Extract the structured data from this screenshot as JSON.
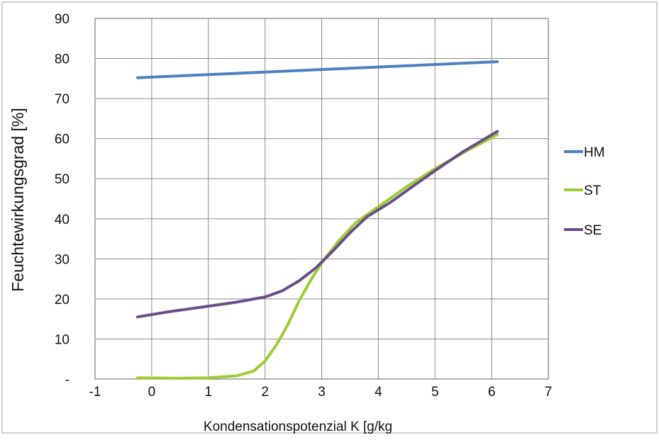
{
  "chart_data": {
    "type": "line",
    "title": "",
    "xlabel": "Kondensationspotenzial K [g/kg",
    "ylabel": "Feuchtewirkungsgrad [%]",
    "xlim": [
      -1,
      7
    ],
    "ylim": [
      0,
      90
    ],
    "grid": true,
    "legend_position": "right",
    "x_tick_labels": [
      "-1",
      "0",
      "1",
      "2",
      "3",
      "4",
      "5",
      "6",
      "7"
    ],
    "y_tick_labels": [
      "-",
      "10",
      "20",
      "30",
      "40",
      "50",
      "60",
      "70",
      "80",
      "90"
    ],
    "series": [
      {
        "name": "HM",
        "color": "#4f7fc0",
        "points": [
          [
            -0.25,
            75.2
          ],
          [
            6.1,
            79.2
          ]
        ]
      },
      {
        "name": "ST",
        "color": "#9acd32",
        "points": [
          [
            -0.25,
            0.3
          ],
          [
            0.5,
            0.2
          ],
          [
            1.0,
            0.3
          ],
          [
            1.5,
            0.8
          ],
          [
            1.8,
            2.0
          ],
          [
            2.0,
            4.5
          ],
          [
            2.2,
            8.5
          ],
          [
            2.4,
            13.5
          ],
          [
            2.6,
            19.5
          ],
          [
            2.8,
            24.5
          ],
          [
            3.0,
            29.0
          ],
          [
            3.3,
            34.5
          ],
          [
            3.6,
            39.0
          ],
          [
            4.0,
            43.0
          ],
          [
            4.5,
            48.0
          ],
          [
            5.0,
            52.5
          ],
          [
            5.5,
            56.5
          ],
          [
            6.1,
            61.0
          ]
        ]
      },
      {
        "name": "SE",
        "color": "#6a4c8c",
        "points": [
          [
            -0.25,
            15.5
          ],
          [
            0.3,
            16.8
          ],
          [
            1.0,
            18.2
          ],
          [
            1.5,
            19.2
          ],
          [
            2.0,
            20.5
          ],
          [
            2.3,
            22.0
          ],
          [
            2.6,
            24.5
          ],
          [
            2.9,
            27.8
          ],
          [
            3.2,
            32.0
          ],
          [
            3.5,
            36.5
          ],
          [
            3.8,
            40.5
          ],
          [
            4.2,
            44.0
          ],
          [
            4.6,
            48.0
          ],
          [
            5.0,
            52.0
          ],
          [
            5.5,
            56.8
          ],
          [
            6.1,
            61.8
          ]
        ]
      }
    ]
  }
}
